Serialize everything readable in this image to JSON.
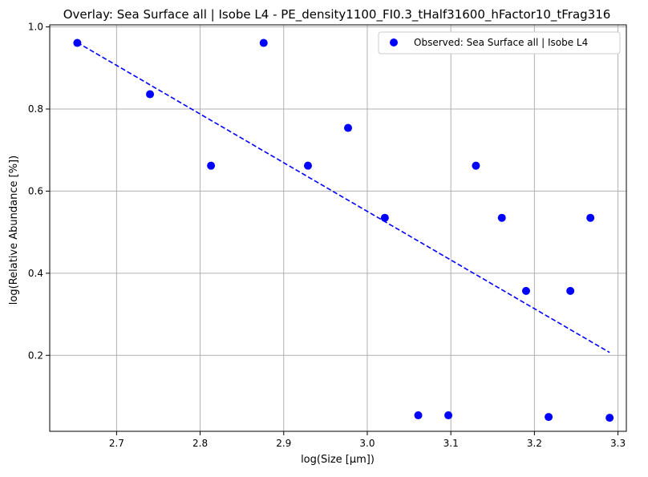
{
  "chart_data": {
    "type": "scatter",
    "title": "Overlay: Sea Surface all | Isobe L4 - PE_density1100_FI0.3_tHalf31600_hFactor10_tFrag316",
    "xlabel": "log(Size [µm])",
    "ylabel": "log(Relative Abundance [%])",
    "xlim": [
      2.62,
      3.31
    ],
    "ylim": [
      0.015,
      1.005
    ],
    "grid": true,
    "legend_position": "top-right",
    "xticks": [
      2.7,
      2.8,
      2.9,
      3.0,
      3.1,
      3.2,
      3.3
    ],
    "xtick_labels": [
      "2.7",
      "2.8",
      "2.9",
      "3.0",
      "3.1",
      "3.2",
      "3.3"
    ],
    "yticks": [
      0.2,
      0.4,
      0.6,
      0.8,
      1.0
    ],
    "ytick_labels": [
      "0.2",
      "0.4",
      "0.6",
      "0.8",
      "1.0"
    ],
    "series": [
      {
        "name": "Observed: Sea Surface all | Isobe L4",
        "kind": "scatter",
        "color": "#0000ff",
        "x": [
          2.653,
          2.74,
          2.813,
          2.876,
          2.929,
          2.977,
          3.021,
          3.061,
          3.097,
          3.13,
          3.161,
          3.19,
          3.217,
          3.243,
          3.267,
          3.29
        ],
        "y": [
          0.961,
          0.836,
          0.662,
          0.961,
          0.662,
          0.754,
          0.535,
          0.054,
          0.054,
          0.662,
          0.535,
          0.357,
          0.05,
          0.357,
          0.535,
          0.048
        ]
      },
      {
        "kind": "line",
        "style": "dashed",
        "color": "#0000ff",
        "x": [
          2.653,
          3.29
        ],
        "y": [
          0.962,
          0.207
        ]
      }
    ]
  }
}
